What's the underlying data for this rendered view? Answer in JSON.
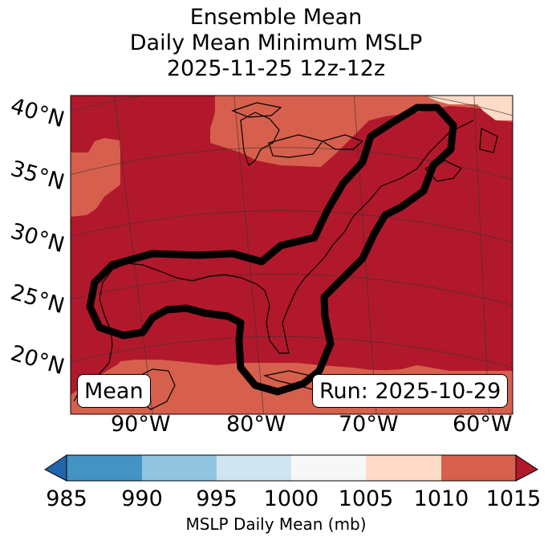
{
  "title": {
    "line1": "Ensemble Mean",
    "line2": "Daily Mean Minimum MSLP",
    "line3": "2025-11-25 12z-12z"
  },
  "map": {
    "lat_labels": [
      "40°N",
      "35°N",
      "30°N",
      "25°N",
      "20°N"
    ],
    "lon_labels": [
      "90°W",
      "80°W",
      "70°W",
      "60°W"
    ],
    "mean_label": "Mean",
    "run_label": "Run: 2025-10-29",
    "region_colors": {
      "core": "#b2182b",
      "outer": "#d6604d",
      "light": "#fddbc7",
      "contour": "#000000"
    }
  },
  "colorbar": {
    "label": "MSLP Daily Mean (mb)",
    "ticks": [
      "985",
      "990",
      "995",
      "1000",
      "1005",
      "1010",
      "1015"
    ],
    "colors": [
      "#2166ac",
      "#4393c3",
      "#92c5de",
      "#d1e5f0",
      "#f7f7f7",
      "#fddbc7",
      "#d6604d",
      "#b2182b"
    ]
  }
}
